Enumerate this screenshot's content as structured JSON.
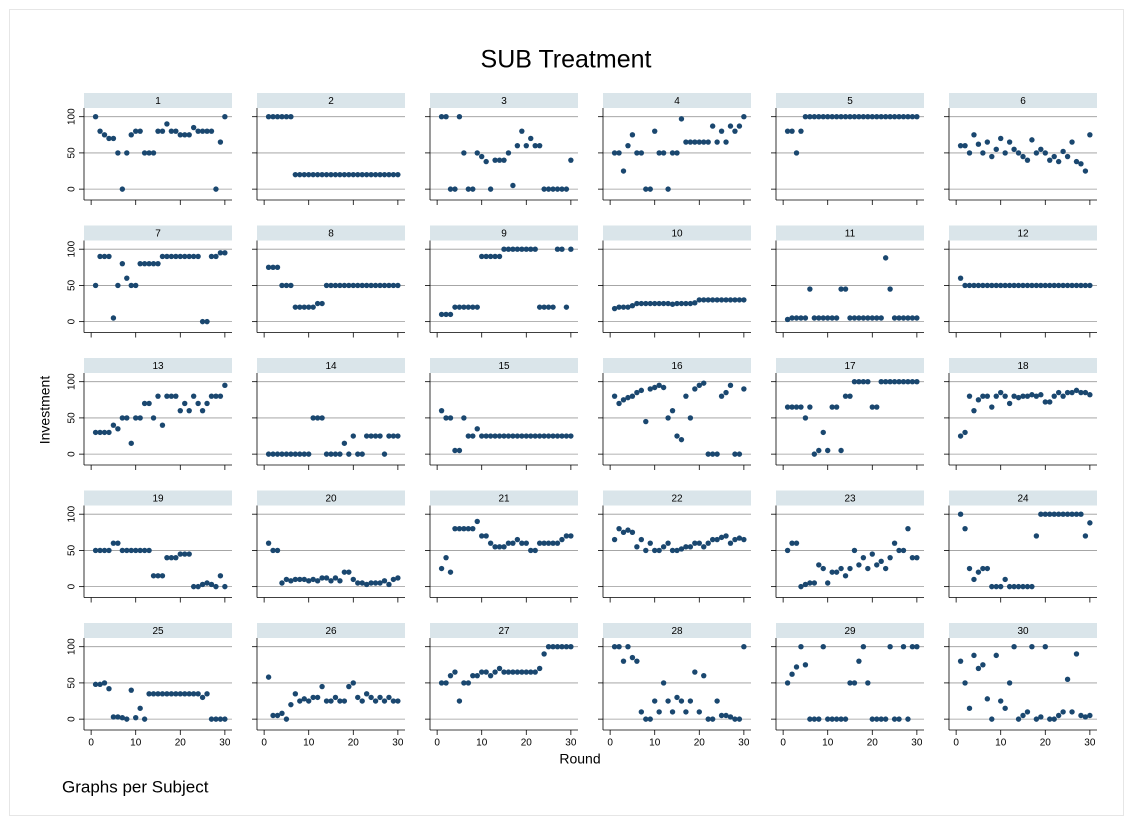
{
  "title": "SUB Treatment",
  "y_label": "Investment",
  "x_label": "Round",
  "note": "Graphs per Subject",
  "x": [
    1,
    2,
    3,
    4,
    5,
    6,
    7,
    8,
    9,
    10,
    11,
    12,
    13,
    14,
    15,
    16,
    17,
    18,
    19,
    20,
    21,
    22,
    23,
    24,
    25,
    26,
    27,
    28,
    29,
    30
  ],
  "xlim": [
    -1.6,
    31.6
  ],
  "xticks": [
    0,
    10,
    20,
    30
  ],
  "ylim": [
    -15,
    112
  ],
  "yticks": [
    0,
    50,
    100
  ],
  "color": "#1a476f",
  "grid": true,
  "chart_data": [
    {
      "type": "scatter",
      "title": "1",
      "values": [
        100,
        80,
        75,
        70,
        70,
        50,
        0,
        50,
        75,
        80,
        80,
        50,
        50,
        50,
        80,
        80,
        90,
        80,
        80,
        75,
        75,
        75,
        85,
        80,
        80,
        80,
        80,
        0,
        65,
        100
      ]
    },
    {
      "type": "scatter",
      "title": "2",
      "values": [
        100,
        100,
        100,
        100,
        100,
        100,
        20,
        20,
        20,
        20,
        20,
        20,
        20,
        20,
        20,
        20,
        20,
        20,
        20,
        20,
        20,
        20,
        20,
        20,
        20,
        20,
        20,
        20,
        20,
        20
      ]
    },
    {
      "type": "scatter",
      "title": "3",
      "values": [
        100,
        100,
        0,
        0,
        100,
        50,
        0,
        0,
        50,
        45,
        38,
        0,
        40,
        40,
        40,
        50,
        5,
        60,
        80,
        60,
        70,
        60,
        60,
        0,
        0,
        0,
        0,
        0,
        0,
        40
      ]
    },
    {
      "type": "scatter",
      "title": "4",
      "values": [
        50,
        50,
        25,
        60,
        75,
        50,
        50,
        0,
        0,
        80,
        50,
        50,
        0,
        50,
        50,
        97,
        65,
        65,
        65,
        65,
        65,
        65,
        87,
        65,
        80,
        65,
        87,
        80,
        87,
        100
      ]
    },
    {
      "type": "scatter",
      "title": "5",
      "values": [
        80,
        80,
        50,
        80,
        100,
        100,
        100,
        100,
        100,
        100,
        100,
        100,
        100,
        100,
        100,
        100,
        100,
        100,
        100,
        100,
        100,
        100,
        100,
        100,
        100,
        100,
        100,
        100,
        100,
        100
      ]
    },
    {
      "type": "scatter",
      "title": "6",
      "values": [
        60,
        60,
        50,
        75,
        62,
        50,
        65,
        45,
        55,
        70,
        50,
        65,
        55,
        50,
        45,
        40,
        68,
        50,
        55,
        50,
        40,
        45,
        38,
        52,
        45,
        65,
        38,
        35,
        25,
        75
      ]
    },
    {
      "type": "scatter",
      "title": "7",
      "values": [
        50,
        90,
        90,
        90,
        5,
        50,
        80,
        60,
        50,
        50,
        80,
        80,
        80,
        80,
        80,
        90,
        90,
        90,
        90,
        90,
        90,
        90,
        90,
        90,
        0,
        0,
        90,
        90,
        95,
        95
      ]
    },
    {
      "type": "scatter",
      "title": "8",
      "values": [
        75,
        75,
        75,
        50,
        50,
        50,
        20,
        20,
        20,
        20,
        20,
        25,
        25,
        50,
        50,
        50,
        50,
        50,
        50,
        50,
        50,
        50,
        50,
        50,
        50,
        50,
        50,
        50,
        50,
        50
      ]
    },
    {
      "type": "scatter",
      "title": "9",
      "values": [
        10,
        10,
        10,
        20,
        20,
        20,
        20,
        20,
        20,
        90,
        90,
        90,
        90,
        90,
        100,
        100,
        100,
        100,
        100,
        100,
        100,
        100,
        20,
        20,
        20,
        20,
        100,
        100,
        20,
        100
      ]
    },
    {
      "type": "scatter",
      "title": "10",
      "values": [
        18,
        20,
        20,
        20,
        22,
        25,
        25,
        25,
        25,
        25,
        25,
        25,
        25,
        24,
        25,
        25,
        25,
        25,
        26,
        30,
        30,
        30,
        30,
        30,
        30,
        30,
        30,
        30,
        30,
        30
      ]
    },
    {
      "type": "scatter",
      "title": "11",
      "values": [
        3,
        5,
        5,
        5,
        5,
        45,
        5,
        5,
        5,
        5,
        5,
        5,
        45,
        45,
        5,
        5,
        5,
        5,
        5,
        5,
        5,
        5,
        88,
        45,
        5,
        5,
        5,
        5,
        5,
        5
      ]
    },
    {
      "type": "scatter",
      "title": "12",
      "values": [
        60,
        50,
        50,
        50,
        50,
        50,
        50,
        50,
        50,
        50,
        50,
        50,
        50,
        50,
        50,
        50,
        50,
        50,
        50,
        50,
        50,
        50,
        50,
        50,
        50,
        50,
        50,
        50,
        50,
        50
      ]
    },
    {
      "type": "scatter",
      "title": "13",
      "values": [
        30,
        30,
        30,
        30,
        40,
        35,
        50,
        50,
        15,
        50,
        50,
        70,
        70,
        50,
        80,
        40,
        80,
        80,
        80,
        60,
        70,
        60,
        80,
        70,
        60,
        70,
        80,
        80,
        80,
        95
      ]
    },
    {
      "type": "scatter",
      "title": "14",
      "values": [
        0,
        0,
        0,
        0,
        0,
        0,
        0,
        0,
        0,
        0,
        50,
        50,
        50,
        0,
        0,
        0,
        0,
        15,
        0,
        25,
        0,
        0,
        25,
        25,
        25,
        25,
        0,
        25,
        25,
        25
      ]
    },
    {
      "type": "scatter",
      "title": "15",
      "values": [
        60,
        50,
        50,
        5,
        5,
        50,
        25,
        25,
        35,
        25,
        25,
        25,
        25,
        25,
        25,
        25,
        25,
        25,
        25,
        25,
        25,
        25,
        25,
        25,
        25,
        25,
        25,
        25,
        25,
        25
      ]
    },
    {
      "type": "scatter",
      "title": "16",
      "values": [
        80,
        70,
        75,
        78,
        80,
        85,
        88,
        45,
        90,
        92,
        95,
        92,
        50,
        60,
        25,
        20,
        80,
        50,
        90,
        95,
        98,
        0,
        0,
        0,
        80,
        85,
        95,
        0,
        0,
        90
      ]
    },
    {
      "type": "scatter",
      "title": "17",
      "values": [
        65,
        65,
        65,
        65,
        50,
        65,
        0,
        5,
        30,
        5,
        65,
        65,
        5,
        80,
        80,
        100,
        100,
        100,
        100,
        65,
        65,
        100,
        100,
        100,
        100,
        100,
        100,
        100,
        100,
        100
      ]
    },
    {
      "type": "scatter",
      "title": "18",
      "values": [
        25,
        30,
        80,
        60,
        75,
        80,
        80,
        65,
        80,
        85,
        80,
        70,
        80,
        78,
        80,
        80,
        82,
        80,
        82,
        72,
        72,
        80,
        85,
        80,
        85,
        85,
        88,
        85,
        85,
        82
      ]
    },
    {
      "type": "scatter",
      "title": "19",
      "values": [
        50,
        50,
        50,
        50,
        60,
        60,
        50,
        50,
        50,
        50,
        50,
        50,
        50,
        15,
        15,
        15,
        40,
        40,
        40,
        45,
        45,
        45,
        0,
        0,
        3,
        5,
        3,
        0,
        15,
        0
      ]
    },
    {
      "type": "scatter",
      "title": "20",
      "values": [
        60,
        50,
        50,
        5,
        10,
        8,
        10,
        10,
        10,
        8,
        10,
        8,
        12,
        12,
        8,
        12,
        8,
        20,
        20,
        10,
        5,
        5,
        3,
        5,
        5,
        5,
        8,
        3,
        10,
        12
      ]
    },
    {
      "type": "scatter",
      "title": "21",
      "values": [
        25,
        40,
        20,
        80,
        80,
        80,
        80,
        80,
        90,
        70,
        70,
        60,
        55,
        55,
        55,
        60,
        60,
        65,
        60,
        60,
        50,
        50,
        60,
        60,
        60,
        60,
        60,
        65,
        70,
        70
      ]
    },
    {
      "type": "scatter",
      "title": "22",
      "values": [
        65,
        80,
        75,
        78,
        75,
        55,
        65,
        50,
        60,
        50,
        50,
        55,
        60,
        50,
        50,
        52,
        55,
        55,
        60,
        60,
        55,
        60,
        65,
        65,
        68,
        70,
        60,
        65,
        67,
        65
      ]
    },
    {
      "type": "scatter",
      "title": "23",
      "values": [
        50,
        60,
        60,
        0,
        3,
        5,
        5,
        30,
        25,
        5,
        20,
        20,
        25,
        15,
        25,
        50,
        30,
        40,
        25,
        45,
        30,
        35,
        25,
        40,
        60,
        50,
        50,
        80,
        40,
        40
      ]
    },
    {
      "type": "scatter",
      "title": "24",
      "values": [
        100,
        80,
        25,
        10,
        20,
        25,
        25,
        0,
        0,
        0,
        10,
        0,
        0,
        0,
        0,
        0,
        0,
        70,
        100,
        100,
        100,
        100,
        100,
        100,
        100,
        100,
        100,
        100,
        70,
        88
      ]
    },
    {
      "type": "scatter",
      "title": "25",
      "values": [
        48,
        48,
        50,
        42,
        3,
        3,
        2,
        0,
        40,
        2,
        15,
        0,
        35,
        35,
        35,
        35,
        35,
        35,
        35,
        35,
        35,
        35,
        35,
        35,
        30,
        35,
        0,
        0,
        0,
        0
      ]
    },
    {
      "type": "scatter",
      "title": "26",
      "values": [
        58,
        5,
        5,
        8,
        0,
        20,
        35,
        25,
        28,
        25,
        30,
        30,
        45,
        25,
        25,
        30,
        25,
        25,
        45,
        50,
        30,
        25,
        35,
        30,
        25,
        30,
        25,
        30,
        25,
        25
      ]
    },
    {
      "type": "scatter",
      "title": "27",
      "values": [
        50,
        50,
        60,
        65,
        25,
        50,
        50,
        60,
        60,
        65,
        65,
        60,
        65,
        70,
        65,
        65,
        65,
        65,
        65,
        65,
        65,
        65,
        70,
        90,
        100,
        100,
        100,
        100,
        100,
        100
      ]
    },
    {
      "type": "scatter",
      "title": "28",
      "values": [
        100,
        100,
        80,
        100,
        85,
        80,
        10,
        0,
        0,
        25,
        10,
        50,
        25,
        10,
        30,
        25,
        10,
        25,
        65,
        10,
        60,
        0,
        0,
        25,
        5,
        5,
        3,
        0,
        0,
        100
      ]
    },
    {
      "type": "scatter",
      "title": "29",
      "values": [
        50,
        62,
        72,
        100,
        75,
        0,
        0,
        0,
        100,
        0,
        0,
        0,
        0,
        0,
        50,
        50,
        80,
        100,
        50,
        0,
        0,
        0,
        0,
        100,
        0,
        0,
        100,
        0,
        100,
        100
      ]
    },
    {
      "type": "scatter",
      "title": "30",
      "values": [
        80,
        50,
        15,
        88,
        70,
        75,
        28,
        0,
        88,
        25,
        15,
        50,
        100,
        0,
        5,
        10,
        100,
        0,
        3,
        100,
        0,
        0,
        5,
        10,
        55,
        10,
        90,
        5,
        3,
        5
      ]
    }
  ]
}
